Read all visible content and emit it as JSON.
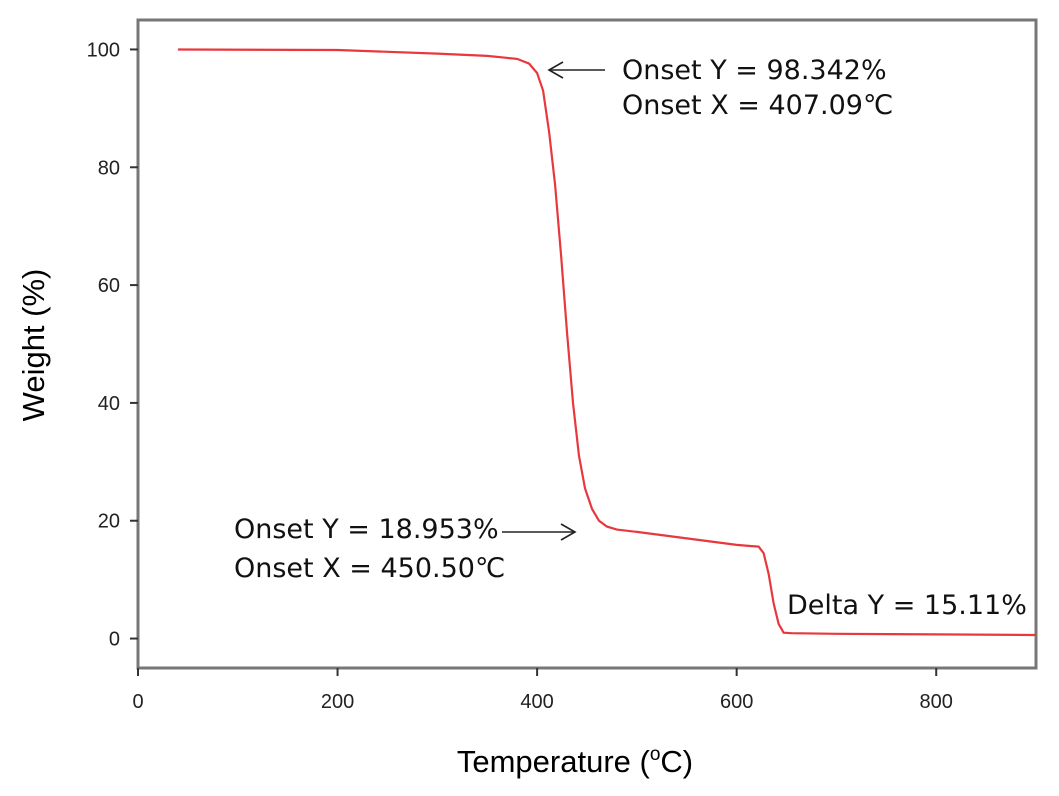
{
  "chart_data": {
    "type": "line",
    "title": "",
    "xlabel": "Temperature (",
    "xlabel_sup": "o",
    "xlabel_end": "C)",
    "ylabel": "Weight (%)",
    "xlim": [
      0,
      900
    ],
    "ylim": [
      -5,
      105
    ],
    "xticks": [
      0,
      200,
      400,
      600,
      800
    ],
    "yticks": [
      0,
      20,
      40,
      60,
      80,
      100
    ],
    "grid": false,
    "legend": "none",
    "series": [
      {
        "color": "#e8383d",
        "x": [
          40,
          200,
          300,
          350,
          380,
          392,
          400,
          406,
          412,
          418,
          424,
          430,
          436,
          442,
          448,
          455,
          462,
          470,
          480,
          500,
          550,
          600,
          615,
          622,
          627,
          632,
          637,
          642,
          647,
          655,
          700,
          800,
          900
        ],
        "y": [
          100,
          99.9,
          99.3,
          98.9,
          98.4,
          97.6,
          96,
          93,
          86,
          77,
          65,
          52,
          40,
          31,
          25.5,
          22,
          20,
          19,
          18.5,
          18.1,
          17,
          15.9,
          15.7,
          15.6,
          14.5,
          11,
          6,
          2.5,
          1,
          0.9,
          0.8,
          0.7,
          0.6
        ]
      }
    ],
    "annotations": [
      {
        "lines": [
          "Onset Y = 98.342%",
          "Onset X = 407.09℃"
        ],
        "arrow": "left",
        "target": [
          400,
          96.5
        ]
      },
      {
        "lines": [
          "Onset Y = 18.953%",
          "Onset X = 450.50℃"
        ],
        "arrow": "right",
        "target": [
          437,
          18.3
        ]
      },
      {
        "lines": [
          "Delta Y = 15.11%"
        ]
      }
    ]
  }
}
